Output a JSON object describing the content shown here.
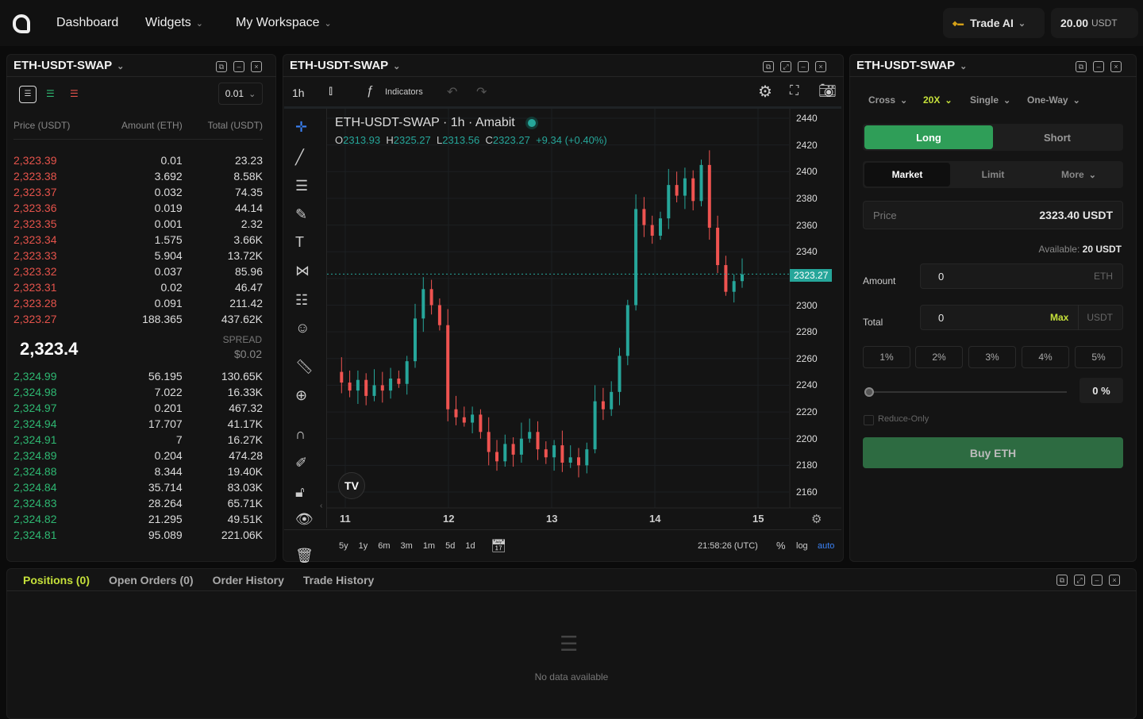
{
  "header": {
    "nav": [
      "Dashboard",
      "Widgets",
      "My Workspace"
    ],
    "trade_ai": "Trade AI",
    "balance": "20.00",
    "balance_unit": "USDT"
  },
  "orderbook": {
    "title": "ETH-USDT-SWAP",
    "tick": "0.01",
    "cols": [
      "Price (USDT)",
      "Amount (ETH)",
      "Total (USDT)"
    ],
    "asks": [
      [
        "2,323.39",
        "0.01",
        "23.23"
      ],
      [
        "2,323.38",
        "3.692",
        "8.58K"
      ],
      [
        "2,323.37",
        "0.032",
        "74.35"
      ],
      [
        "2,323.36",
        "0.019",
        "44.14"
      ],
      [
        "2,323.35",
        "0.001",
        "2.32"
      ],
      [
        "2,323.34",
        "1.575",
        "3.66K"
      ],
      [
        "2,323.33",
        "5.904",
        "13.72K"
      ],
      [
        "2,323.32",
        "0.037",
        "85.96"
      ],
      [
        "2,323.31",
        "0.02",
        "46.47"
      ],
      [
        "2,323.28",
        "0.091",
        "211.42"
      ],
      [
        "2,323.27",
        "188.365",
        "437.62K"
      ]
    ],
    "mid": "2,323.4",
    "spread_label": "SPREAD",
    "spread": "$0.02",
    "bids": [
      [
        "2,324.99",
        "56.195",
        "130.65K"
      ],
      [
        "2,324.98",
        "7.022",
        "16.33K"
      ],
      [
        "2,324.97",
        "0.201",
        "467.32"
      ],
      [
        "2,324.94",
        "17.707",
        "41.17K"
      ],
      [
        "2,324.91",
        "7",
        "16.27K"
      ],
      [
        "2,324.89",
        "0.204",
        "474.28"
      ],
      [
        "2,324.88",
        "8.344",
        "19.40K"
      ],
      [
        "2,324.84",
        "35.714",
        "83.03K"
      ],
      [
        "2,324.83",
        "28.264",
        "65.71K"
      ],
      [
        "2,324.82",
        "21.295",
        "49.51K"
      ],
      [
        "2,324.81",
        "95.089",
        "221.06K"
      ]
    ]
  },
  "chart": {
    "title": "ETH-USDT-SWAP",
    "interval": "1h",
    "indicators": "Indicators",
    "legend": "ETH-USDT-SWAP · 1h · Amabit",
    "o": "2313.93",
    "h": "2325.27",
    "l": "2313.56",
    "c": "2323.27",
    "change": "+9.34 (+0.40%)",
    "last_price": "2323.27",
    "time": "21:58:26 (UTC)",
    "ranges": [
      "5y",
      "1y",
      "6m",
      "3m",
      "1m",
      "5d",
      "1d"
    ],
    "pct": "%",
    "log": "log",
    "auto": "auto",
    "up_color": "#26a69a",
    "down_color": "#ef5350"
  },
  "chart_data": {
    "type": "candlestick",
    "yticks": [
      2440,
      2420,
      2400,
      2380,
      2360,
      2340,
      2320,
      2300,
      2280,
      2260,
      2240,
      2220,
      2200,
      2180,
      2160
    ],
    "xticks": [
      "11",
      "12",
      "13",
      "14",
      "15"
    ],
    "ylim": [
      2160,
      2440
    ],
    "closes": [
      2250,
      2242,
      2236,
      2244,
      2232,
      2240,
      2236,
      2245,
      2241,
      2258,
      2290,
      2312,
      2300,
      2285,
      2222,
      2216,
      2212,
      2218,
      2205,
      2190,
      2183,
      2196,
      2188,
      2200,
      2205,
      2192,
      2186,
      2195,
      2182,
      2186,
      2180,
      2192,
      2228,
      2222,
      2235,
      2262,
      2300,
      2372,
      2360,
      2352,
      2365,
      2390,
      2382,
      2395,
      2378,
      2405,
      2358,
      2330,
      2310,
      2318,
      2323
    ]
  },
  "trade": {
    "title": "ETH-USDT-SWAP",
    "margin": "Cross",
    "leverage": "20X",
    "mode": "Single",
    "position": "One-Way",
    "long": "Long",
    "short": "Short",
    "types": [
      "Market",
      "Limit",
      "More"
    ],
    "price_label": "Price",
    "price": "2323.40 USDT",
    "available_label": "Available:",
    "available": "20 USDT",
    "amount_label": "Amount",
    "amount": "0",
    "amount_unit": "ETH",
    "total_label": "Total",
    "total": "0",
    "max": "Max",
    "total_unit": "USDT",
    "pcts": [
      "1%",
      "2%",
      "3%",
      "4%",
      "5%"
    ],
    "slider_value": "0",
    "slider_unit": "%",
    "reduce_only": "Reduce-Only",
    "buy": "Buy ETH"
  },
  "bottom": {
    "tabs": [
      "Positions (0)",
      "Open Orders (0)",
      "Order History",
      "Trade History"
    ],
    "empty": "No data available"
  }
}
